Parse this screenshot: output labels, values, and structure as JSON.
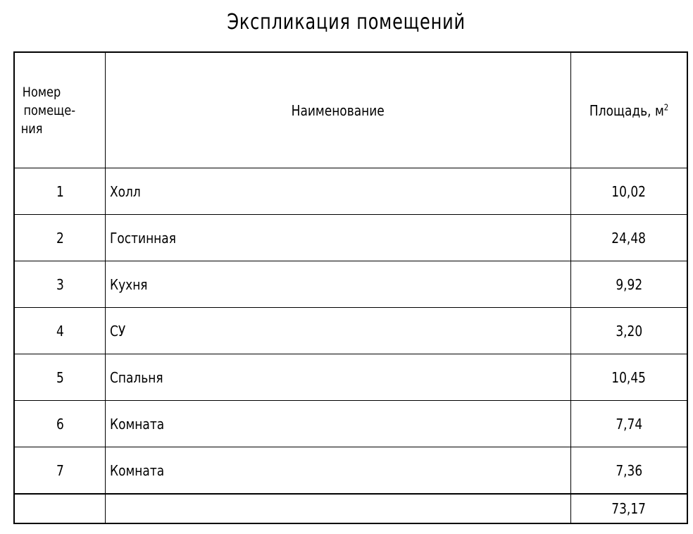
{
  "title": "Экспликация помещений",
  "columns": {
    "number": [
      "Номер",
      "помеще-",
      "ния"
    ],
    "name": "Наименование",
    "area": "Площадь, м",
    "area_unit_sup": "2"
  },
  "rows": [
    {
      "num": "1",
      "name": "Холл",
      "area": "10,02"
    },
    {
      "num": "2",
      "name": "Гостинная",
      "area": "24,48"
    },
    {
      "num": "3",
      "name": "Кухня",
      "area": "9,92"
    },
    {
      "num": "4",
      "name": "СУ",
      "area": "3,20"
    },
    {
      "num": "5",
      "name": "Спальня",
      "area": "10,45"
    },
    {
      "num": "6",
      "name": "Комната",
      "area": "7,74"
    },
    {
      "num": "7",
      "name": "Комната",
      "area": "7,36"
    }
  ],
  "total": "73,17"
}
